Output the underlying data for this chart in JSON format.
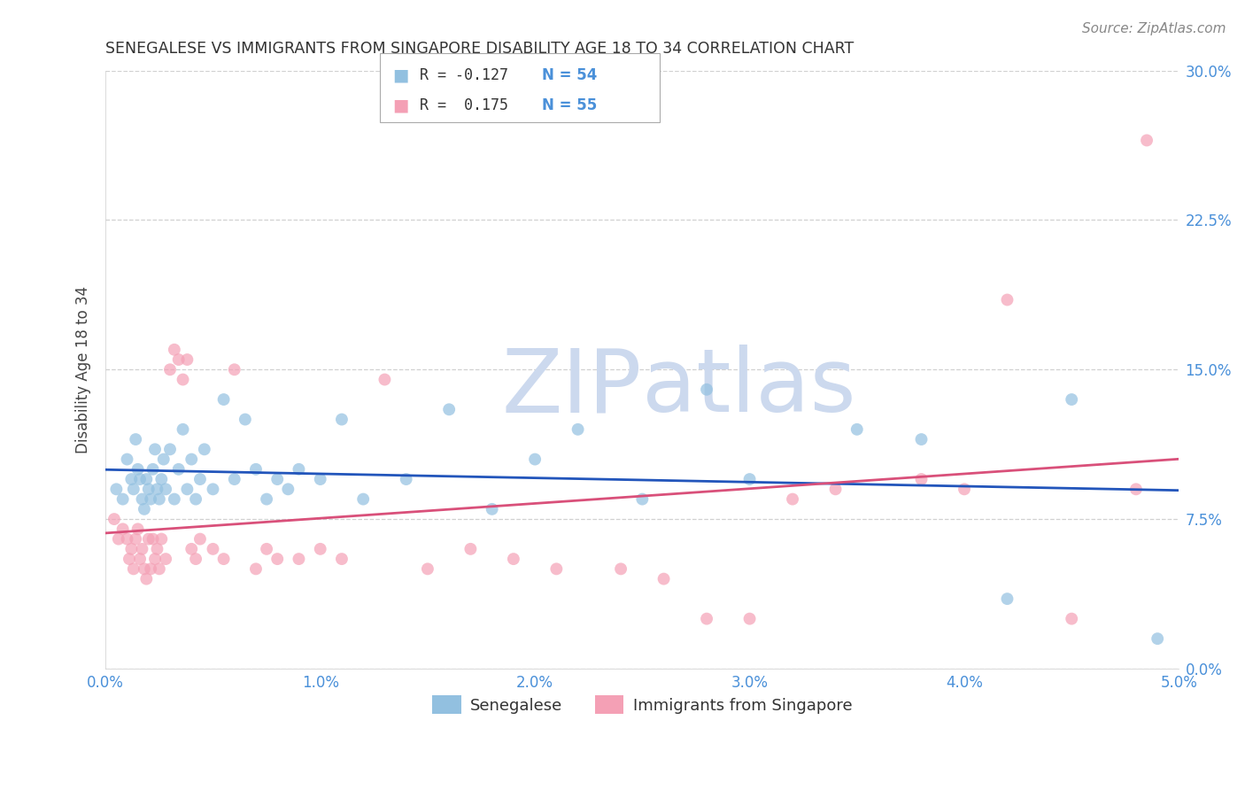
{
  "title": "SENEGALESE VS IMMIGRANTS FROM SINGAPORE DISABILITY AGE 18 TO 34 CORRELATION CHART",
  "source": "Source: ZipAtlas.com",
  "ylabel": "Disability Age 18 to 34",
  "xlabel_vals": [
    0.0,
    1.0,
    2.0,
    3.0,
    4.0,
    5.0
  ],
  "ylabel_vals": [
    0.0,
    7.5,
    15.0,
    22.5,
    30.0
  ],
  "xlim": [
    0.0,
    5.0
  ],
  "ylim": [
    0.0,
    30.0
  ],
  "legend_blue_label": "Senegalese",
  "legend_pink_label": "Immigrants from Singapore",
  "blue_color": "#92c0e0",
  "pink_color": "#f4a0b5",
  "blue_line_color": "#2255bb",
  "pink_line_color": "#d9507a",
  "background_color": "#ffffff",
  "title_color": "#333333",
  "axis_tick_color": "#4a90d9",
  "grid_color": "#cccccc",
  "watermark_color": "#ccd9ee",
  "blue_scatter_x": [
    0.05,
    0.08,
    0.1,
    0.12,
    0.13,
    0.14,
    0.15,
    0.16,
    0.17,
    0.18,
    0.19,
    0.2,
    0.21,
    0.22,
    0.23,
    0.24,
    0.25,
    0.26,
    0.27,
    0.28,
    0.3,
    0.32,
    0.34,
    0.36,
    0.38,
    0.4,
    0.42,
    0.44,
    0.46,
    0.5,
    0.55,
    0.6,
    0.65,
    0.7,
    0.75,
    0.8,
    0.85,
    0.9,
    1.0,
    1.1,
    1.2,
    1.4,
    1.6,
    1.8,
    2.0,
    2.2,
    2.5,
    2.8,
    3.0,
    3.5,
    3.8,
    4.2,
    4.5,
    4.9
  ],
  "blue_scatter_y": [
    9.0,
    8.5,
    10.5,
    9.5,
    9.0,
    11.5,
    10.0,
    9.5,
    8.5,
    8.0,
    9.5,
    9.0,
    8.5,
    10.0,
    11.0,
    9.0,
    8.5,
    9.5,
    10.5,
    9.0,
    11.0,
    8.5,
    10.0,
    12.0,
    9.0,
    10.5,
    8.5,
    9.5,
    11.0,
    9.0,
    13.5,
    9.5,
    12.5,
    10.0,
    8.5,
    9.5,
    9.0,
    10.0,
    9.5,
    12.5,
    8.5,
    9.5,
    13.0,
    8.0,
    10.5,
    12.0,
    8.5,
    14.0,
    9.5,
    12.0,
    11.5,
    3.5,
    13.5,
    1.5
  ],
  "pink_scatter_x": [
    0.04,
    0.06,
    0.08,
    0.1,
    0.11,
    0.12,
    0.13,
    0.14,
    0.15,
    0.16,
    0.17,
    0.18,
    0.19,
    0.2,
    0.21,
    0.22,
    0.23,
    0.24,
    0.25,
    0.26,
    0.28,
    0.3,
    0.32,
    0.34,
    0.36,
    0.38,
    0.4,
    0.42,
    0.44,
    0.5,
    0.55,
    0.6,
    0.7,
    0.75,
    0.8,
    0.9,
    1.0,
    1.1,
    1.3,
    1.5,
    1.7,
    1.9,
    2.1,
    2.4,
    2.6,
    2.8,
    3.0,
    3.2,
    3.4,
    3.8,
    4.0,
    4.2,
    4.5,
    4.8,
    4.85
  ],
  "pink_scatter_y": [
    7.5,
    6.5,
    7.0,
    6.5,
    5.5,
    6.0,
    5.0,
    6.5,
    7.0,
    5.5,
    6.0,
    5.0,
    4.5,
    6.5,
    5.0,
    6.5,
    5.5,
    6.0,
    5.0,
    6.5,
    5.5,
    15.0,
    16.0,
    15.5,
    14.5,
    15.5,
    6.0,
    5.5,
    6.5,
    6.0,
    5.5,
    15.0,
    5.0,
    6.0,
    5.5,
    5.5,
    6.0,
    5.5,
    14.5,
    5.0,
    6.0,
    5.5,
    5.0,
    5.0,
    4.5,
    2.5,
    2.5,
    8.5,
    9.0,
    9.5,
    9.0,
    18.5,
    2.5,
    9.0,
    26.5
  ]
}
